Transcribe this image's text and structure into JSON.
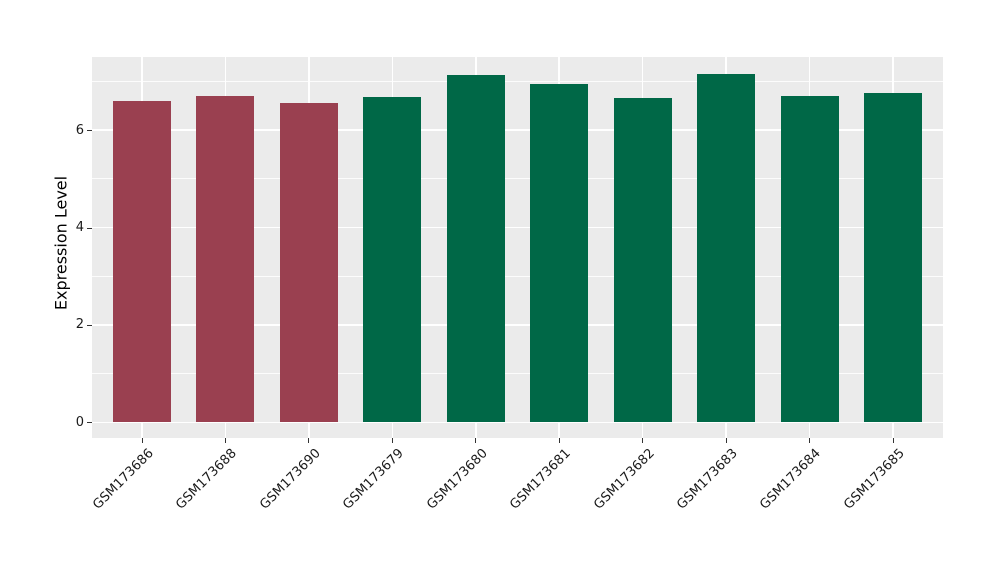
{
  "figure": {
    "background": "#FFFFFF"
  },
  "chart_data": {
    "type": "bar",
    "ylabel": "Expression Level",
    "categories": [
      "GSM173686",
      "GSM173688",
      "GSM173690",
      "GSM173679",
      "GSM173680",
      "GSM173681",
      "GSM173682",
      "GSM173683",
      "GSM173684",
      "GSM173685"
    ],
    "values": [
      6.59,
      6.7,
      6.55,
      6.68,
      7.13,
      6.94,
      6.66,
      7.15,
      6.7,
      6.76
    ],
    "bar_colors": [
      "#9A4050",
      "#9A4050",
      "#9A4050",
      "#006847",
      "#006847",
      "#006847",
      "#006847",
      "#006847",
      "#006847",
      "#006847"
    ],
    "ylim": [
      -0.32,
      7.5
    ],
    "yticks_major": [
      0,
      2,
      4,
      6
    ],
    "yticks_minor": [
      1,
      3,
      5,
      7
    ],
    "grid": true,
    "legend": null,
    "x_tick_rotation_deg": 45,
    "panel_bg": "#EBEBEB",
    "grid_color": "#FFFFFF",
    "text_color": "#1A1A1A"
  }
}
